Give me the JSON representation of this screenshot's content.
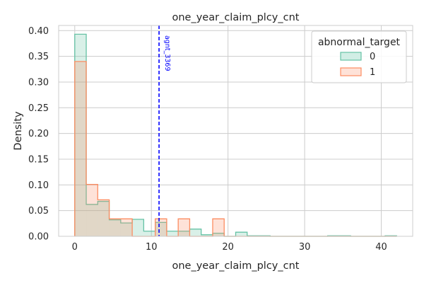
{
  "chart_data": {
    "type": "histogram",
    "title": "one_year_claim_plcy_cnt",
    "xlabel": "one_year_claim_plcy_cnt",
    "ylabel": "Density",
    "xlim": [
      -2.1,
      44.1
    ],
    "ylim": [
      0,
      0.41
    ],
    "xticks": [
      0,
      10,
      20,
      30,
      40
    ],
    "yticks": [
      0.0,
      0.05,
      0.1,
      0.15,
      0.2,
      0.25,
      0.3,
      0.35,
      0.4
    ],
    "ytick_labels": [
      "0.00",
      "0.05",
      "0.10",
      "0.15",
      "0.20",
      "0.25",
      "0.30",
      "0.35",
      "0.40"
    ],
    "grid": true,
    "bins": {
      "start": 0,
      "width": 1.5,
      "count": 28
    },
    "legend": {
      "title": "abnormal_target",
      "position": "top-right"
    },
    "series": [
      {
        "name": "0",
        "line_color": "#66c2a5",
        "fill_color": "#66c2a5",
        "fill_opacity": 0.25,
        "values": [
          0.393,
          0.062,
          0.068,
          0.032,
          0.026,
          0.033,
          0.01,
          0.027,
          0.01,
          0.01,
          0.014,
          0.003,
          0.006,
          0,
          0.008,
          0.001,
          0.001,
          0,
          0,
          0,
          0,
          0,
          0.001,
          0.001,
          0,
          0,
          0,
          0.001
        ]
      },
      {
        "name": "1",
        "line_color": "#fc8d62",
        "fill_color": "#fc8d62",
        "fill_opacity": 0.25,
        "values": [
          0.34,
          0.101,
          0.071,
          0.034,
          0.034,
          0,
          0,
          0.034,
          0,
          0.034,
          0,
          0,
          0.034,
          0,
          0,
          0,
          0,
          0,
          0,
          0,
          0,
          0,
          0,
          0,
          0,
          0,
          0,
          0
        ]
      }
    ],
    "annotation": {
      "type": "vline",
      "x": 11,
      "label": "agnt_3369",
      "color": "#0000ff",
      "style": "dashed"
    }
  }
}
